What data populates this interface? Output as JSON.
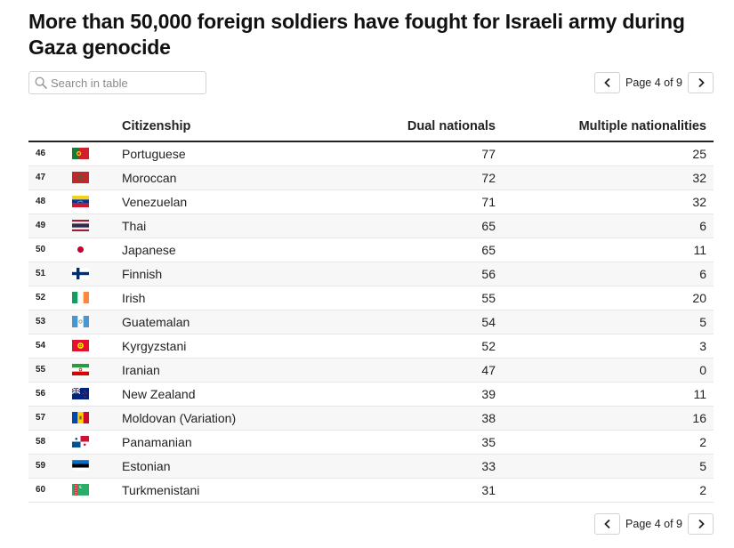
{
  "title": "More than 50,000 foreign soldiers have fought for Israeli army during Gaza genocide",
  "search": {
    "placeholder": "Search in table",
    "icon": "search-icon"
  },
  "pagination": {
    "label": "Page 4 of 9",
    "prev_icon": "chevron-left-icon",
    "next_icon": "chevron-right-icon"
  },
  "table": {
    "columns": {
      "rank": "",
      "flag": "",
      "citizenship": "Citizenship",
      "dual": "Dual nationals",
      "multiple": "Multiple nationalities"
    },
    "rows": [
      {
        "rank": "46",
        "flag": "portugal-flag-icon",
        "citizenship": "Portuguese",
        "dual": "77",
        "multiple": "25"
      },
      {
        "rank": "47",
        "flag": "morocco-flag-icon",
        "citizenship": "Moroccan",
        "dual": "72",
        "multiple": "32"
      },
      {
        "rank": "48",
        "flag": "venezuela-flag-icon",
        "citizenship": "Venezuelan",
        "dual": "71",
        "multiple": "32"
      },
      {
        "rank": "49",
        "flag": "thailand-flag-icon",
        "citizenship": "Thai",
        "dual": "65",
        "multiple": "6"
      },
      {
        "rank": "50",
        "flag": "japan-flag-icon",
        "citizenship": "Japanese",
        "dual": "65",
        "multiple": "11"
      },
      {
        "rank": "51",
        "flag": "finland-flag-icon",
        "citizenship": "Finnish",
        "dual": "56",
        "multiple": "6"
      },
      {
        "rank": "52",
        "flag": "ireland-flag-icon",
        "citizenship": "Irish",
        "dual": "55",
        "multiple": "20"
      },
      {
        "rank": "53",
        "flag": "guatemala-flag-icon",
        "citizenship": "Guatemalan",
        "dual": "54",
        "multiple": "5"
      },
      {
        "rank": "54",
        "flag": "kyrgyzstan-flag-icon",
        "citizenship": "Kyrgyzstani",
        "dual": "52",
        "multiple": "3"
      },
      {
        "rank": "55",
        "flag": "iran-flag-icon",
        "citizenship": "Iranian",
        "dual": "47",
        "multiple": "0"
      },
      {
        "rank": "56",
        "flag": "new-zealand-flag-icon",
        "citizenship": "New Zealand",
        "dual": "39",
        "multiple": "11"
      },
      {
        "rank": "57",
        "flag": "moldova-flag-icon",
        "citizenship": "Moldovan (Variation)",
        "dual": "38",
        "multiple": "16"
      },
      {
        "rank": "58",
        "flag": "panama-flag-icon",
        "citizenship": "Panamanian",
        "dual": "35",
        "multiple": "2"
      },
      {
        "rank": "59",
        "flag": "estonia-flag-icon",
        "citizenship": "Estonian",
        "dual": "33",
        "multiple": "5"
      },
      {
        "rank": "60",
        "flag": "turkmenistan-flag-icon",
        "citizenship": "Turkmenistani",
        "dual": "31",
        "multiple": "2"
      }
    ]
  }
}
